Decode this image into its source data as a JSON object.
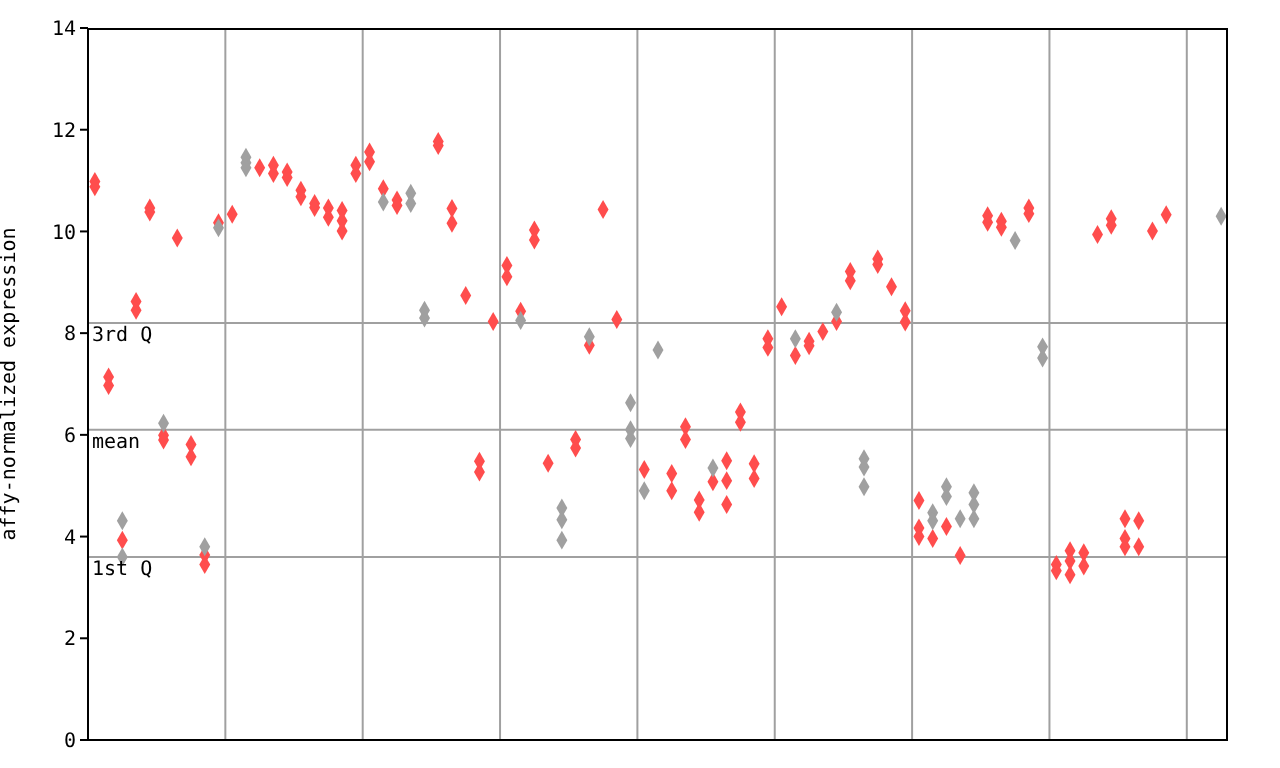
{
  "chart_data": {
    "type": "scatter",
    "ylabel": "affy-normalized expression",
    "categories": [
      null,
      null,
      null,
      null,
      null,
      null,
      null,
      null,
      null,
      null,
      null,
      null,
      null,
      null,
      null,
      null,
      null,
      null,
      null,
      null,
      null,
      null,
      null,
      null,
      null,
      null,
      null,
      null,
      null,
      null,
      null,
      null,
      null,
      null,
      null,
      null,
      null,
      null,
      null,
      null,
      null,
      null,
      null,
      null,
      null,
      null,
      null,
      null,
      null,
      null,
      null,
      null,
      null,
      null,
      null,
      null,
      null,
      null,
      null,
      null,
      null,
      null,
      null,
      null,
      null,
      null,
      null,
      null,
      null,
      null,
      null,
      null,
      null,
      null,
      null,
      null,
      null,
      null,
      null,
      null,
      null,
      null,
      null
    ],
    "ylim": [
      0,
      14
    ],
    "yticks": [
      0,
      2,
      4,
      6,
      8,
      10,
      12,
      14
    ],
    "grid": "x",
    "marker": "diamond",
    "ref_lines": [
      {
        "axis": "y",
        "value": 8.2,
        "label": "3rd Q",
        "color": "#a0a0a0"
      },
      {
        "axis": "y",
        "value": 6.1,
        "label": "mean",
        "color": "#a0a0a0"
      },
      {
        "axis": "y",
        "value": 3.6,
        "label": "1st Q",
        "color": "#a0a0a0"
      }
    ],
    "series": [
      {
        "color": "#ff4d4d",
        "values": [
          10.98,
          7.14,
          3.93,
          8.62,
          10.46,
          5.99,
          9.87,
          5.81,
          3.64,
          10.17,
          10.34,
          null,
          11.25,
          11.3,
          11.17,
          10.81,
          10.55,
          10.46,
          10.41,
          11.3,
          11.56,
          10.84,
          10.62,
          null,
          null,
          11.77,
          10.45,
          8.74,
          5.48,
          8.23,
          9.33,
          8.43,
          10.03,
          5.44,
          null,
          5.91,
          7.76,
          10.43,
          8.27,
          null,
          5.32,
          null,
          5.24,
          6.16,
          4.72,
          5.08,
          5.49,
          6.45,
          5.43,
          7.89,
          8.52,
          7.56,
          7.84,
          8.03,
          8.23,
          9.21,
          null,
          9.46,
          8.91,
          8.44,
          4.71,
          3.96,
          4.2,
          3.63,
          null,
          10.31,
          10.2,
          null,
          10.46,
          null,
          3.45,
          3.72,
          3.68,
          9.94,
          10.25,
          4.35,
          4.31,
          10.01,
          10.33,
          null,
          null,
          null,
          null
        ]
      },
      {
        "color": "#ff4d4d",
        "values": [
          10.88,
          6.97,
          null,
          8.45,
          10.38,
          5.9,
          null,
          5.57,
          3.45,
          null,
          null,
          null,
          null,
          11.14,
          11.06,
          10.68,
          10.47,
          10.28,
          10.21,
          11.14,
          11.37,
          null,
          10.51,
          null,
          null,
          11.69,
          10.16,
          null,
          5.27,
          null,
          9.11,
          null,
          9.83,
          null,
          null,
          5.74,
          null,
          null,
          null,
          null,
          null,
          null,
          4.9,
          5.91,
          4.48,
          null,
          5.1,
          6.25,
          5.14,
          7.72,
          null,
          null,
          7.75,
          null,
          null,
          9.03,
          null,
          9.35,
          null,
          8.22,
          4.17,
          null,
          null,
          null,
          null,
          10.18,
          10.08,
          null,
          10.35,
          null,
          3.33,
          3.52,
          3.42,
          null,
          10.12,
          3.96,
          3.8,
          null,
          null,
          null,
          null,
          null,
          null
        ]
      },
      {
        "color": "#ff4d4d",
        "values": [
          null,
          null,
          null,
          null,
          null,
          null,
          null,
          null,
          null,
          null,
          null,
          null,
          null,
          null,
          null,
          null,
          null,
          null,
          10.01,
          null,
          null,
          null,
          null,
          null,
          null,
          null,
          null,
          null,
          null,
          null,
          null,
          null,
          null,
          null,
          null,
          null,
          null,
          null,
          null,
          null,
          null,
          null,
          null,
          null,
          null,
          null,
          4.63,
          null,
          null,
          null,
          null,
          null,
          null,
          null,
          null,
          null,
          null,
          null,
          null,
          null,
          4.0,
          null,
          null,
          null,
          null,
          null,
          null,
          null,
          null,
          null,
          null,
          3.25,
          null,
          null,
          null,
          3.8,
          null,
          null,
          null,
          null,
          null,
          null,
          null
        ]
      },
      {
        "color": "#a0a0a0",
        "values": [
          null,
          null,
          4.31,
          null,
          null,
          6.23,
          null,
          null,
          3.8,
          10.07,
          null,
          11.46,
          null,
          null,
          null,
          null,
          null,
          null,
          null,
          null,
          null,
          10.58,
          null,
          10.75,
          8.45,
          null,
          null,
          null,
          null,
          null,
          null,
          8.25,
          null,
          null,
          4.56,
          null,
          7.93,
          null,
          null,
          6.63,
          4.9,
          7.67,
          null,
          null,
          null,
          5.35,
          null,
          null,
          null,
          null,
          null,
          7.89,
          null,
          null,
          8.41,
          null,
          5.53,
          null,
          null,
          null,
          null,
          4.47,
          4.98,
          4.35,
          4.86,
          null,
          null,
          9.82,
          null,
          7.73,
          null,
          null,
          null,
          null,
          null,
          null,
          null,
          null,
          null,
          null,
          null,
          null,
          10.3
        ]
      },
      {
        "color": "#a0a0a0",
        "values": [
          null,
          null,
          3.6,
          null,
          null,
          null,
          null,
          null,
          null,
          null,
          null,
          11.35,
          null,
          null,
          null,
          null,
          null,
          null,
          null,
          null,
          null,
          null,
          null,
          10.55,
          8.3,
          null,
          null,
          null,
          null,
          null,
          null,
          null,
          null,
          null,
          4.33,
          null,
          null,
          null,
          null,
          6.1,
          null,
          null,
          null,
          null,
          null,
          null,
          null,
          null,
          null,
          null,
          null,
          null,
          null,
          null,
          null,
          null,
          5.37,
          null,
          null,
          null,
          null,
          4.31,
          4.79,
          null,
          4.63,
          null,
          null,
          null,
          null,
          7.51,
          null,
          null,
          null,
          null,
          null,
          null,
          null,
          null,
          null,
          null,
          null,
          null,
          null
        ]
      },
      {
        "color": "#a0a0a0",
        "values": [
          null,
          null,
          null,
          null,
          null,
          null,
          null,
          null,
          null,
          null,
          null,
          11.25,
          null,
          null,
          null,
          null,
          null,
          null,
          null,
          null,
          null,
          null,
          null,
          null,
          null,
          null,
          null,
          null,
          null,
          null,
          null,
          null,
          null,
          null,
          3.93,
          null,
          null,
          null,
          null,
          5.93,
          null,
          null,
          null,
          null,
          null,
          null,
          null,
          null,
          null,
          null,
          null,
          null,
          null,
          null,
          null,
          null,
          4.98,
          null,
          null,
          null,
          null,
          null,
          null,
          null,
          4.35,
          null,
          null,
          null,
          null,
          null,
          null,
          null,
          null,
          null,
          null,
          null,
          null,
          null,
          null,
          null,
          null,
          null,
          null
        ]
      }
    ]
  }
}
